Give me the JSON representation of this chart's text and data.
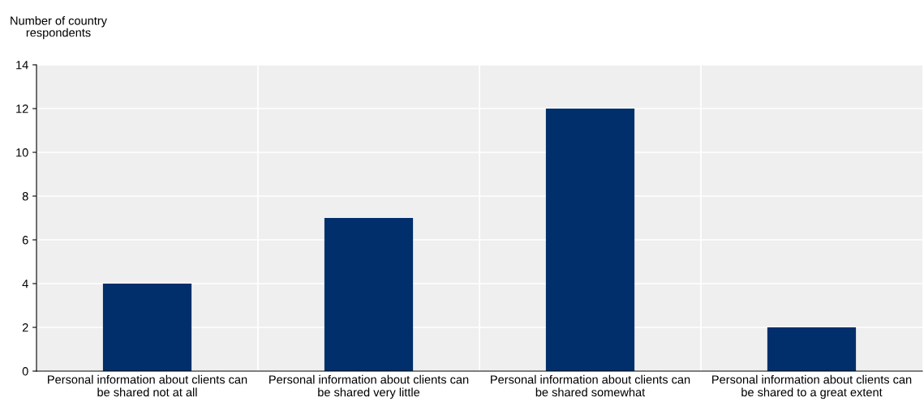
{
  "chart_data": {
    "type": "bar",
    "ylabel": "Number of country\nrespondents",
    "categories": [
      "Personal information about clients can\nbe shared not at all",
      "Personal information about clients can\nbe shared very little",
      "Personal information about clients can\nbe shared somewhat",
      "Personal information about clients can\nbe shared to a great extent"
    ],
    "values": [
      4,
      7,
      12,
      2
    ],
    "color": "#002f6c",
    "ylim": [
      0,
      14
    ],
    "yticks": [
      0,
      2,
      4,
      6,
      8,
      10,
      12,
      14
    ],
    "grid": true
  }
}
